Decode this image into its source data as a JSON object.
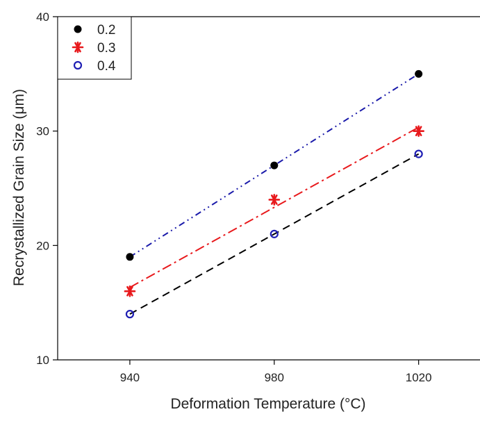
{
  "chart_data": {
    "type": "scatter",
    "xlabel": "Deformation Temperature (°C)",
    "ylabel": "Recrystallized Grain Size (μm)",
    "xlim": [
      920,
      1037
    ],
    "ylim": [
      10,
      40
    ],
    "x": [
      940,
      980,
      1020
    ],
    "x_ticks": [
      940,
      980,
      1020
    ],
    "y_ticks": [
      10,
      20,
      30,
      40
    ],
    "grid": false,
    "legend_position": "top-left",
    "series": [
      {
        "name": "0.2",
        "values": [
          19,
          27,
          35
        ],
        "marker": "filled-circle",
        "color": "#000000",
        "fit_line": {
          "style": "dash-dot-dot",
          "color": "#1a1aaa"
        }
      },
      {
        "name": "0.3",
        "values": [
          16,
          24,
          30
        ],
        "marker": "asterisk",
        "color": "#e8191c",
        "fit_line": {
          "style": "dash-dot",
          "color": "#e8191c"
        }
      },
      {
        "name": "0.4",
        "values": [
          14,
          21,
          28
        ],
        "marker": "open-circle",
        "color": "#1f1fb4",
        "fit_line": {
          "style": "dashed",
          "color": "#000000"
        }
      }
    ]
  }
}
